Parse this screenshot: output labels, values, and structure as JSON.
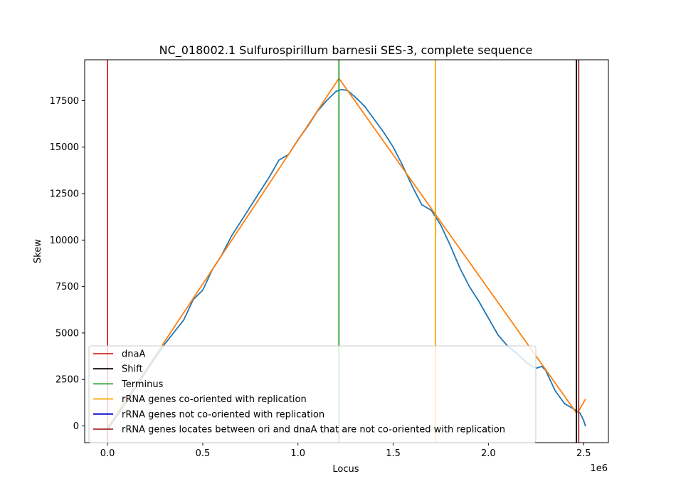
{
  "chart_data": {
    "type": "line",
    "title": "NC_018002.1 Sulfurospirillum barnesii SES-3, complete sequence",
    "xlabel": "Locus",
    "ylabel": "Skew",
    "x_offset_label": "1e6",
    "xlim": [
      -120000,
      2630000
    ],
    "ylim": [
      -900,
      19700
    ],
    "x_ticks": [
      {
        "value": 0,
        "label": "0.0"
      },
      {
        "value": 500000,
        "label": "0.5"
      },
      {
        "value": 1000000,
        "label": "1.0"
      },
      {
        "value": 1500000,
        "label": "1.5"
      },
      {
        "value": 2000000,
        "label": "2.0"
      },
      {
        "value": 2500000,
        "label": "2.5"
      }
    ],
    "y_ticks": [
      {
        "value": 0,
        "label": "0"
      },
      {
        "value": 2500,
        "label": "2500"
      },
      {
        "value": 5000,
        "label": "5000"
      },
      {
        "value": 7500,
        "label": "7500"
      },
      {
        "value": 10000,
        "label": "10000"
      },
      {
        "value": 12500,
        "label": "12500"
      },
      {
        "value": 15000,
        "label": "15000"
      },
      {
        "value": 17500,
        "label": "17500"
      }
    ],
    "vlines": [
      {
        "name": "dnaA",
        "x": 0,
        "color": "#d62728"
      },
      {
        "name": "Terminus",
        "x": 1215000,
        "color": "#2ca02c"
      },
      {
        "name": "rRNA genes co-oriented with replication",
        "x": 1722000,
        "color": "#ffa500"
      },
      {
        "name": "Shift",
        "x": 2462000,
        "color": "#000000"
      },
      {
        "name": "rRNA genes locates between ori and dnaA that are not co-oriented with replication",
        "x": 2474000,
        "color": "#a52a2a"
      }
    ],
    "series": [
      {
        "color": "#1f77b4",
        "x": [
          0,
          100000,
          200000,
          300000,
          400000,
          450000,
          500000,
          550000,
          600000,
          650000,
          700000,
          750000,
          800000,
          850000,
          900000,
          950000,
          1000000,
          1050000,
          1100000,
          1150000,
          1200000,
          1230000,
          1260000,
          1300000,
          1350000,
          1400000,
          1450000,
          1500000,
          1550000,
          1600000,
          1650000,
          1700000,
          1750000,
          1800000,
          1850000,
          1900000,
          1950000,
          2000000,
          2050000,
          2100000,
          2150000,
          2200000,
          2250000,
          2280000,
          2300000,
          2350000,
          2400000,
          2450000,
          2480000,
          2500000,
          2510000
        ],
        "y": [
          -200,
          1300,
          2900,
          4400,
          5700,
          6800,
          7300,
          8400,
          9200,
          10200,
          11000,
          11800,
          12600,
          13400,
          14300,
          14600,
          15400,
          16100,
          16900,
          17500,
          18000,
          18100,
          18050,
          17700,
          17200,
          16500,
          15800,
          15000,
          14000,
          12900,
          11900,
          11600,
          10800,
          9700,
          8500,
          7500,
          6700,
          5800,
          4900,
          4300,
          3900,
          3400,
          3100,
          3200,
          3000,
          1900,
          1200,
          900,
          700,
          300,
          -20
        ]
      },
      {
        "color": "#ff7f0e",
        "x": [
          0,
          1215000,
          2462000,
          2474000,
          2510000
        ],
        "y": [
          -100,
          18700,
          700,
          800,
          1450
        ]
      }
    ],
    "legend": {
      "position": "lower-left",
      "entries": [
        {
          "label": "dnaA",
          "color": "#d62728"
        },
        {
          "label": "Shift",
          "color": "#000000"
        },
        {
          "label": "Terminus",
          "color": "#2ca02c"
        },
        {
          "label": "rRNA genes co-oriented with replication",
          "color": "#ffa500"
        },
        {
          "label": "rRNA genes not co-oriented with replication",
          "color": "#0000cd"
        },
        {
          "label": "rRNA genes locates between ori and dnaA that are not co-oriented with replication",
          "color": "#a52a2a"
        }
      ]
    },
    "grid": false
  }
}
